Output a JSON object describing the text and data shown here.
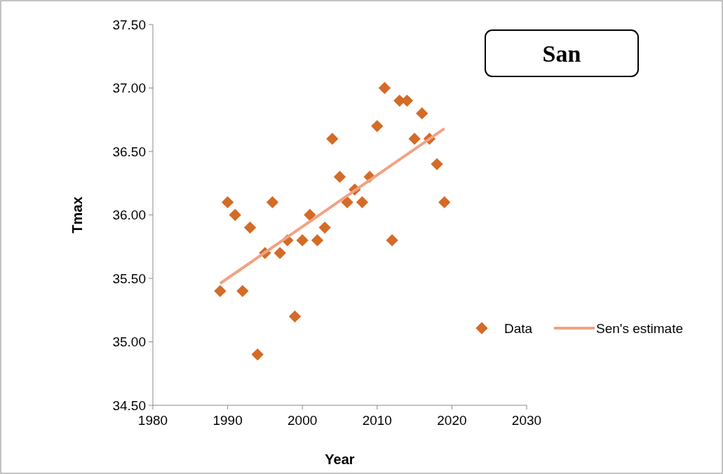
{
  "chart_data": {
    "type": "scatter",
    "title": "San",
    "xlabel": "Year",
    "ylabel": "Tmax",
    "xlim": [
      1980,
      2030
    ],
    "xticks": [
      1980,
      1990,
      2000,
      2010,
      2020,
      2030
    ],
    "ylim": [
      34.5,
      37.5
    ],
    "yticks": [
      {
        "value": 34.5,
        "label": "34.50"
      },
      {
        "value": 35,
        "label": "35.00"
      },
      {
        "value": 35.5,
        "label": "35.50"
      },
      {
        "value": 36,
        "label": "36.00"
      },
      {
        "value": 36.5,
        "label": "36.50"
      },
      {
        "value": 37,
        "label": "37.00"
      },
      {
        "value": 37.5,
        "label": "37.50"
      }
    ],
    "grid": false,
    "legend": "right",
    "series": [
      {
        "name": "Data",
        "marker": "diamond",
        "color": "#d46b27",
        "x": [
          1989,
          1990,
          1991,
          1992,
          1993,
          1994,
          1995,
          1996,
          1997,
          1998,
          1999,
          2000,
          2001,
          2002,
          2003,
          2004,
          2005,
          2006,
          2007,
          2008,
          2009,
          2010,
          2011,
          2012,
          2013,
          2014,
          2015,
          2016,
          2017,
          2018,
          2019
        ],
        "values": [
          35.4,
          36.1,
          36.0,
          35.4,
          35.9,
          34.9,
          35.7,
          36.1,
          35.7,
          35.8,
          35.2,
          35.8,
          36.0,
          35.8,
          35.9,
          36.6,
          36.3,
          36.1,
          36.2,
          36.1,
          36.3,
          36.7,
          37.0,
          35.8,
          36.9,
          36.9,
          36.6,
          36.8,
          36.6,
          36.4,
          36.1
        ]
      },
      {
        "name": "Sen's estimate",
        "type": "line",
        "color": "#f2a283",
        "x": [
          1989,
          2019
        ],
        "values": [
          35.46,
          36.68
        ]
      }
    ]
  }
}
